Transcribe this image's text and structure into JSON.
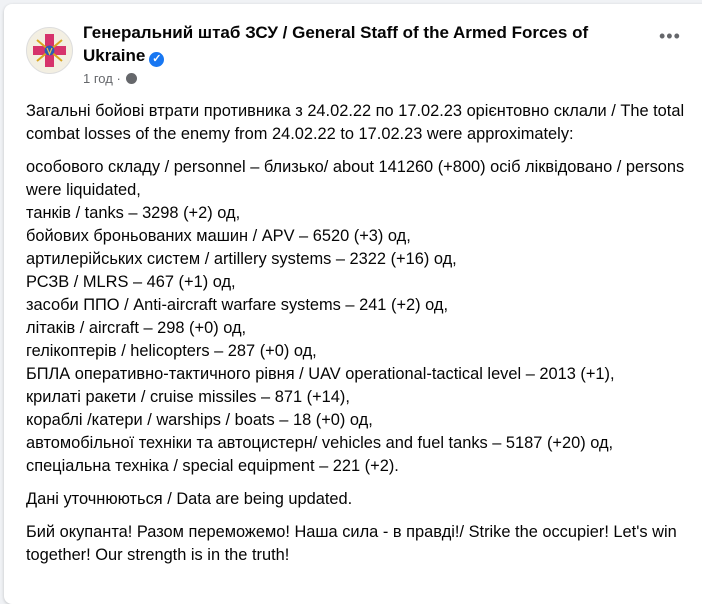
{
  "post": {
    "author": "Генеральний штаб ЗСУ / General Staff of the Armed Forces of Ukraine",
    "verified_icon": "verified-badge-icon",
    "time": "1 год",
    "separator": "·",
    "privacy_icon": "globe-icon",
    "more_label": "•••",
    "intro": "Загальні бойові втрати противника з 24.02.22 по 17.02.23 орієнтовно склали / The total combat losses of the enemy from 24.02.22 to 17.02.23 were approximately:",
    "items": [
      "особового складу / personnel – близько/ about 141260 (+800) осіб ліквідовано / persons were liquidated,",
      "танків / tanks – 3298 (+2) од,",
      "бойових броньованих машин / APV – 6520 (+3) од,",
      "артилерійських систем / artillery systems – 2322 (+16) од,",
      "РСЗВ / MLRS – 467 (+1) од,",
      "засоби ППО / Anti-aircraft warfare systems – 241 (+2) од,",
      "літаків / aircraft – 298 (+0) од,",
      "гелікоптерів / helicopters – 287 (+0) од,",
      "БПЛА оперативно-тактичного рівня / UAV operational-tactical level – 2013 (+1),",
      "крилаті ракети / cruise missiles – 871 (+14),",
      "кораблі /катери / warships / boats – 18 (+0) од,",
      "автомобільної техніки та автоцистерн/ vehicles and fuel tanks – 5187 (+20) од,",
      "спеціальна техніка / special equipment – 221 (+2)."
    ],
    "update_note": "Дані уточнюються / Data are being updated.",
    "closing": "Бий окупанта! Разом переможемо! Наша сила - в правді!/ Strike the occupier! Let's win together! Our strength is in the truth!"
  }
}
